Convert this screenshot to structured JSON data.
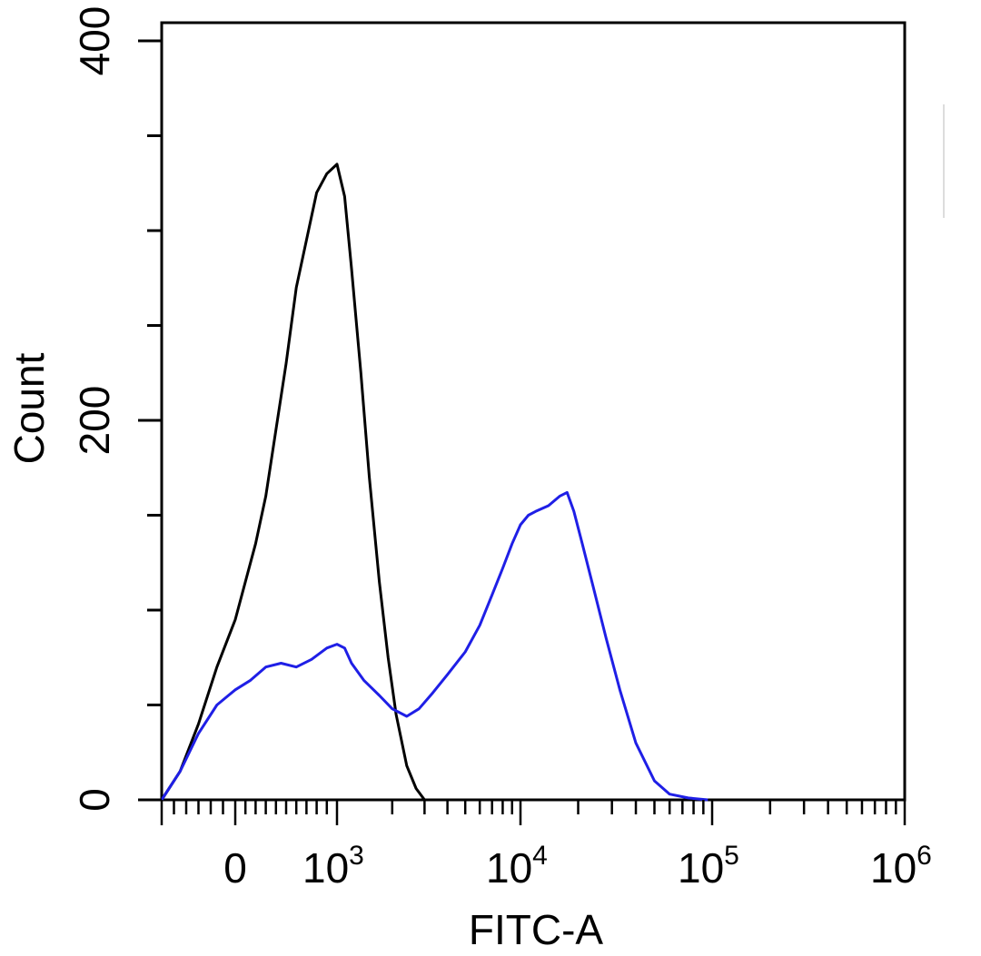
{
  "chart_data": {
    "type": "line",
    "title": "",
    "xlabel": "FITC-A",
    "ylabel": "Count",
    "xscale": "biexponential",
    "yscale": "linear",
    "ylim": [
      0,
      400
    ],
    "grid": false,
    "y_ticks": [
      {
        "value": 0,
        "label": "0"
      },
      {
        "value": 200,
        "label": "200"
      },
      {
        "value": 400,
        "label": "400"
      }
    ],
    "x_ticks": [
      {
        "value": 0,
        "label": "0"
      },
      {
        "value": 1000,
        "base": "10",
        "exp": "3"
      },
      {
        "value": 10000,
        "base": "10",
        "exp": "4"
      },
      {
        "value": 100000,
        "base": "10",
        "exp": "5"
      },
      {
        "value": 1000000,
        "base": "10",
        "exp": "6"
      }
    ],
    "series": [
      {
        "color": "#000000",
        "x": [
          -600,
          -450,
          -300,
          -150,
          0,
          100,
          200,
          300,
          400,
          500,
          600,
          700,
          800,
          900,
          1000,
          1100,
          1200,
          1350,
          1500,
          1700,
          1900,
          2100,
          2400,
          2700,
          3000
        ],
        "y": [
          0,
          15,
          40,
          70,
          95,
          115,
          135,
          160,
          195,
          230,
          270,
          295,
          320,
          330,
          335,
          318,
          280,
          225,
          170,
          115,
          75,
          45,
          18,
          6,
          0
        ]
      },
      {
        "color": "#1f1fe6",
        "x": [
          -600,
          -450,
          -300,
          -150,
          0,
          150,
          300,
          450,
          600,
          750,
          900,
          1000,
          1100,
          1200,
          1400,
          1700,
          2000,
          2400,
          2800,
          3300,
          4000,
          5000,
          6000,
          7000,
          8000,
          9000,
          10000,
          11000,
          12000,
          14000,
          16000,
          17500,
          19000,
          21000,
          24000,
          28000,
          33000,
          40000,
          50000,
          60000,
          75000,
          95000
        ],
        "y": [
          0,
          15,
          35,
          50,
          58,
          63,
          70,
          72,
          70,
          74,
          80,
          82,
          80,
          72,
          63,
          55,
          48,
          44,
          48,
          56,
          66,
          78,
          92,
          108,
          122,
          135,
          145,
          150,
          152,
          155,
          160,
          162,
          152,
          135,
          112,
          85,
          58,
          30,
          10,
          3,
          1,
          0
        ]
      }
    ]
  }
}
